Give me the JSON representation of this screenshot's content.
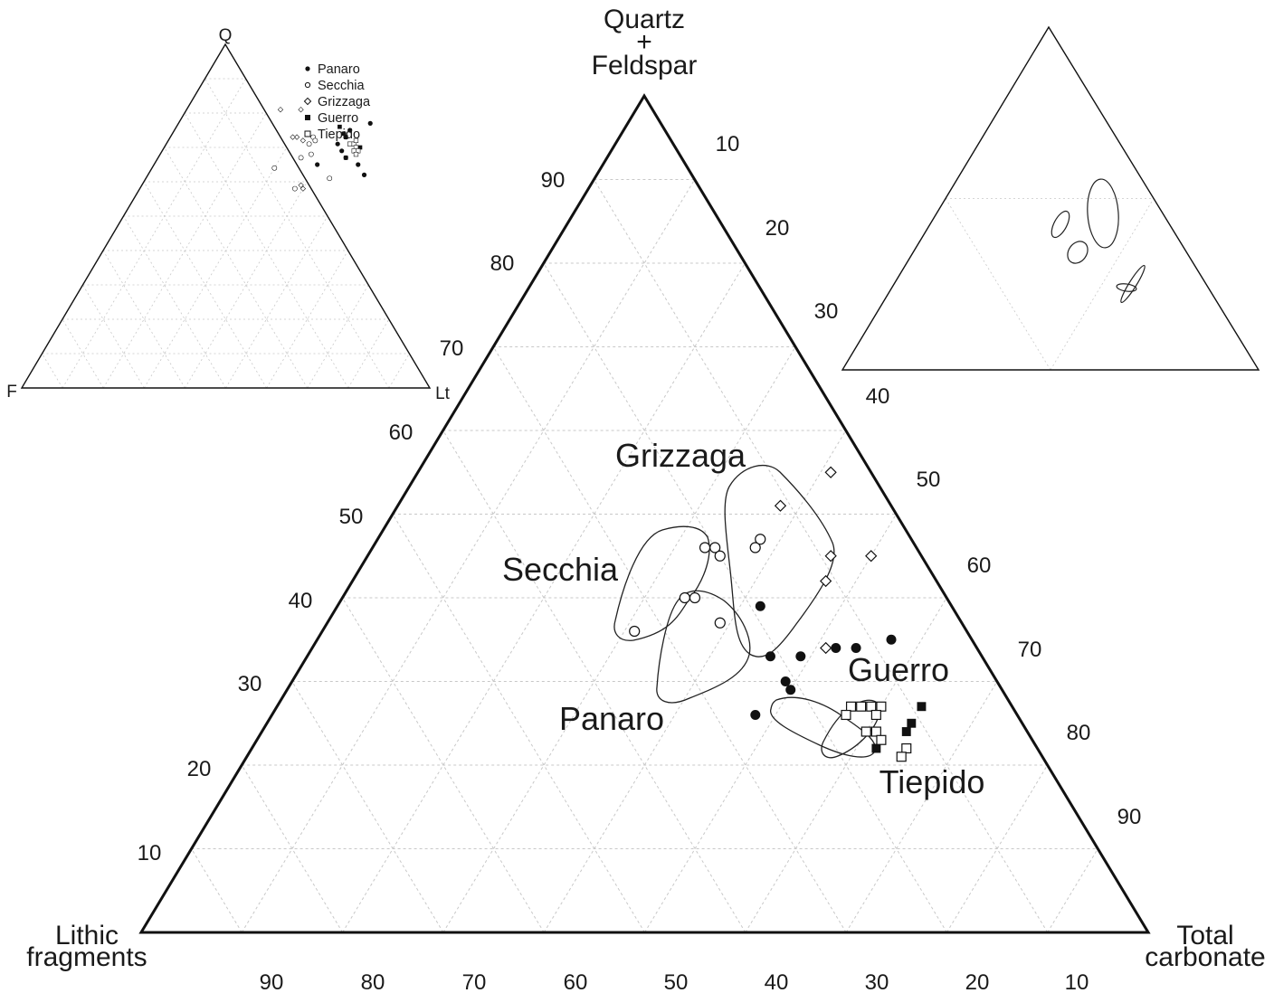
{
  "chart_data": [
    {
      "type": "ternary",
      "apex_labels": {
        "top": [
          "Quartz",
          "+",
          "Feldspar"
        ],
        "left": [
          "Lithic",
          "fragments"
        ],
        "right": [
          "Total",
          "carbonate"
        ]
      },
      "left_edge_ticks": [
        "90",
        "80",
        "70",
        "60",
        "50",
        "40",
        "30",
        "20",
        "10"
      ],
      "right_edge_ticks": [
        "10",
        "20",
        "30",
        "40",
        "50",
        "60",
        "70",
        "80",
        "90"
      ],
      "bottom_edge_ticks": [
        "90",
        "80",
        "70",
        "60",
        "50",
        "40",
        "30",
        "20",
        "10"
      ],
      "grid": "dotted, 10% intervals",
      "groups": [
        {
          "name": "Panaro",
          "marker": "filled-circle",
          "points": [
            {
              "qf": 39,
              "carb": 42
            },
            {
              "qf": 33,
              "carb": 46
            },
            {
              "qf": 34,
              "carb": 52
            },
            {
              "qf": 35,
              "carb": 57
            },
            {
              "qf": 30,
              "carb": 49
            },
            {
              "qf": 29,
              "carb": 50
            },
            {
              "qf": 33,
              "carb": 49
            },
            {
              "qf": 34,
              "carb": 54
            },
            {
              "qf": 26,
              "carb": 48
            }
          ]
        },
        {
          "name": "Secchia",
          "marker": "open-circle",
          "points": [
            {
              "qf": 46,
              "carb": 33
            },
            {
              "qf": 46,
              "carb": 34
            },
            {
              "qf": 45,
              "carb": 35
            },
            {
              "qf": 47,
              "carb": 38
            },
            {
              "qf": 46,
              "carb": 38
            },
            {
              "qf": 40,
              "carb": 35
            },
            {
              "qf": 40,
              "carb": 34
            },
            {
              "qf": 37,
              "carb": 39
            },
            {
              "qf": 36,
              "carb": 31
            }
          ]
        },
        {
          "name": "Grizzaga",
          "marker": "open-diamond",
          "points": [
            {
              "qf": 55,
              "carb": 41
            },
            {
              "qf": 51,
              "carb": 38
            },
            {
              "qf": 45,
              "carb": 46
            },
            {
              "qf": 45,
              "carb": 50
            },
            {
              "qf": 42,
              "carb": 47
            },
            {
              "qf": 34,
              "carb": 51
            }
          ]
        },
        {
          "name": "Guerro",
          "marker": "filled-square",
          "points": [
            {
              "qf": 27,
              "carb": 64
            },
            {
              "qf": 25,
              "carb": 64
            },
            {
              "qf": 24,
              "carb": 64
            },
            {
              "qf": 22,
              "carb": 62
            }
          ]
        },
        {
          "name": "Tiepido",
          "marker": "open-square",
          "points": [
            {
              "qf": 27,
              "carb": 58
            },
            {
              "qf": 27,
              "carb": 57
            },
            {
              "qf": 26,
              "carb": 57
            },
            {
              "qf": 27,
              "carb": 59
            },
            {
              "qf": 27,
              "carb": 60
            },
            {
              "qf": 26,
              "carb": 60
            },
            {
              "qf": 24,
              "carb": 60
            },
            {
              "qf": 24,
              "carb": 61
            },
            {
              "qf": 23,
              "carb": 62
            },
            {
              "qf": 22,
              "carb": 65
            },
            {
              "qf": 21,
              "carb": 65
            }
          ]
        }
      ]
    },
    {
      "type": "ternary",
      "apex_labels": {
        "top": "Q",
        "left": "F",
        "right": "Lt"
      },
      "grid": "dotted",
      "legend": [
        "Panaro",
        "Secchia",
        "Grizzaga",
        "Guerro",
        "Tiepido"
      ],
      "legend_placement": "top-right",
      "groups": [
        {
          "name": "Panaro",
          "marker": "filled-circle",
          "points": [
            {
              "q": 77,
              "lt": 47
            },
            {
              "q": 75,
              "lt": 43
            },
            {
              "q": 71,
              "lt": 42
            },
            {
              "q": 65,
              "lt": 40
            },
            {
              "q": 69,
              "lt": 44
            },
            {
              "q": 73,
              "lt": 43
            },
            {
              "q": 65,
              "lt": 50
            },
            {
              "q": 67,
              "lt": 46
            },
            {
              "q": 62,
              "lt": 53
            }
          ]
        },
        {
          "name": "Secchia",
          "marker": "open-circle",
          "points": [
            {
              "q": 73,
              "lt": 35
            },
            {
              "q": 72,
              "lt": 36
            },
            {
              "q": 71,
              "lt": 35
            },
            {
              "q": 67,
              "lt": 35
            },
            {
              "q": 64,
              "lt": 30
            },
            {
              "q": 61,
              "lt": 45
            },
            {
              "q": 58,
              "lt": 38
            },
            {
              "q": 68,
              "lt": 37
            }
          ]
        },
        {
          "name": "Grizzaga",
          "marker": "open-diamond",
          "points": [
            {
              "q": 81,
              "lt": 23
            },
            {
              "q": 81,
              "lt": 28
            },
            {
              "q": 73,
              "lt": 31
            },
            {
              "q": 73,
              "lt": 30
            },
            {
              "q": 72,
              "lt": 33
            },
            {
              "q": 59,
              "lt": 39
            },
            {
              "q": 58,
              "lt": 40
            }
          ]
        },
        {
          "name": "Guerro",
          "marker": "filled-square",
          "points": [
            {
              "q": 76,
              "lt": 40
            },
            {
              "q": 74,
              "lt": 42
            },
            {
              "q": 73,
              "lt": 43
            },
            {
              "q": 70,
              "lt": 48
            },
            {
              "q": 67,
              "lt": 46
            }
          ]
        },
        {
          "name": "Tiepido",
          "marker": "open-square",
          "points": [
            {
              "q": 71,
              "lt": 45
            },
            {
              "q": 71,
              "lt": 46
            },
            {
              "q": 70,
              "lt": 47
            },
            {
              "q": 72,
              "lt": 46
            },
            {
              "q": 69,
              "lt": 47
            },
            {
              "q": 69,
              "lt": 48
            },
            {
              "q": 68,
              "lt": 48
            }
          ]
        }
      ]
    },
    {
      "type": "ternary",
      "description_fields": "outline-only",
      "grid": "dotted",
      "group_outlines": 4
    }
  ]
}
